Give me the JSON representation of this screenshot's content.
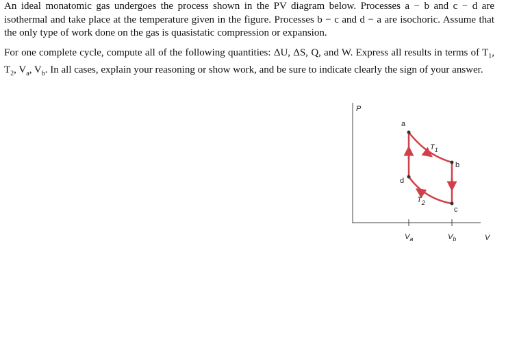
{
  "paragraphs": [
    "An ideal monatomic gas undergoes the process shown in the PV diagram below. Processes a − b and c − d are isothermal and take place at the temperature given in the figure. Processes b − c and d − a are isochoric. Assume that the only type of work done on the gas is quasistatic compression or expansion.",
    [
      {
        "text": "For one complete cycle, compute all of the following quantities: ΔU, ΔS, Q, and W. Express all results in terms of T"
      },
      {
        "sub": "1"
      },
      {
        "text": ", T"
      },
      {
        "sub": "2"
      },
      {
        "text": ", V"
      },
      {
        "sub": "a"
      },
      {
        "text": ", V"
      },
      {
        "sub": "b"
      },
      {
        "text": ". In all cases, explain your reasoning or show work, and be sure to indicate clearly the sign of your answer."
      }
    ]
  ],
  "diagram": {
    "y_axis": "P",
    "x_axis": "V",
    "points": {
      "a": "a",
      "b": "b",
      "c": "c",
      "d": "d"
    },
    "isotherms": [
      {
        "symbol": "T",
        "subscript": "1"
      },
      {
        "symbol": "T",
        "subscript": "2"
      }
    ],
    "volumes": [
      {
        "symbol": "V",
        "subscript": "a"
      },
      {
        "symbol": "V",
        "subscript": "b"
      }
    ]
  }
}
